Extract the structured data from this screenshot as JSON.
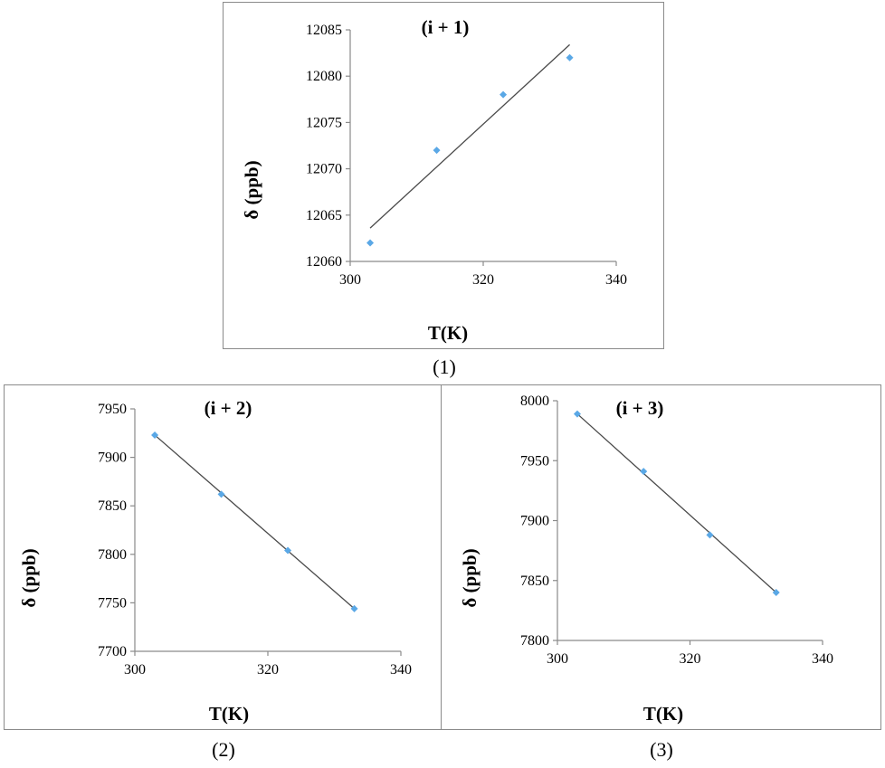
{
  "colors": {
    "marker": "#5aa8e6",
    "trend": "#4a4a4a",
    "axis": "#8a8a8a",
    "border": "#8a8a8a"
  },
  "captions": [
    "(1)",
    "(2)",
    "(3)"
  ],
  "chart_data": [
    {
      "type": "scatter",
      "title": "(i + 1)",
      "xlabel": "T(K)",
      "ylabel": "δ (ppb)",
      "xlim": [
        300,
        340
      ],
      "ylim": [
        12060,
        12085
      ],
      "xticks": [
        "300",
        "320",
        "340"
      ],
      "yticks": [
        "12060",
        "12065",
        "12070",
        "12075",
        "12080",
        "12085"
      ],
      "grid": false,
      "x": [
        303,
        313,
        323,
        333
      ],
      "y": [
        12062,
        12072,
        12078,
        12082
      ],
      "trendline": {
        "x": [
          303,
          333
        ],
        "y": [
          12063.6,
          12083.4
        ]
      }
    },
    {
      "type": "scatter",
      "title": "(i + 2)",
      "xlabel": "T(K)",
      "ylabel": "δ (ppb)",
      "xlim": [
        300,
        340
      ],
      "ylim": [
        7700,
        7950
      ],
      "xticks": [
        "300",
        "320",
        "340"
      ],
      "yticks": [
        "7700",
        "7750",
        "7800",
        "7850",
        "7900",
        "7950"
      ],
      "grid": false,
      "x": [
        303,
        313,
        323,
        333
      ],
      "y": [
        7923,
        7862,
        7804,
        7744
      ],
      "trendline": {
        "x": [
          303,
          333
        ],
        "y": [
          7923,
          7744
        ]
      }
    },
    {
      "type": "scatter",
      "title": "(i + 3)",
      "xlabel": "T(K)",
      "ylabel": "δ (ppb)",
      "xlim": [
        300,
        340
      ],
      "ylim": [
        7800,
        8000
      ],
      "xticks": [
        "300",
        "320",
        "340"
      ],
      "yticks": [
        "7800",
        "7850",
        "7900",
        "7950",
        "8000"
      ],
      "grid": false,
      "x": [
        303,
        313,
        323,
        333
      ],
      "y": [
        7989,
        7941,
        7888,
        7840
      ],
      "trendline": {
        "x": [
          303,
          333
        ],
        "y": [
          7989,
          7840
        ]
      }
    }
  ]
}
